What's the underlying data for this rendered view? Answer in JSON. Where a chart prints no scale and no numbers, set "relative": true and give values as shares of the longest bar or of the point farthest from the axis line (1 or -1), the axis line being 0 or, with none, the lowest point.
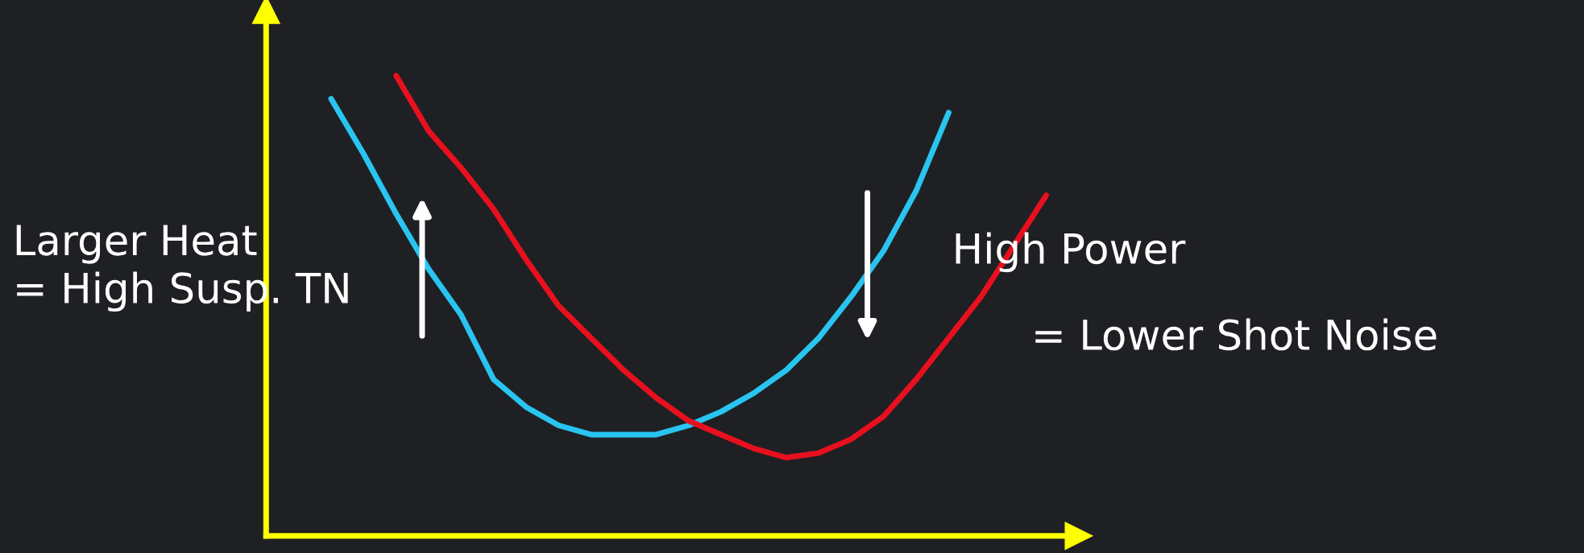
{
  "chart_data": {
    "type": "line",
    "relative": true,
    "marker": "none",
    "line_style": "solid",
    "categories": [
      null,
      null,
      null,
      null,
      null,
      null,
      null,
      null,
      null,
      null,
      null,
      null,
      null,
      null,
      null,
      null,
      null,
      null,
      null,
      null,
      null,
      null,
      null
    ],
    "series": [
      {
        "color": "#29c4f0",
        "values": [
          0.95,
          0.83,
          0.7,
          0.58,
          0.48,
          0.34,
          0.28,
          0.24,
          0.22,
          0.22,
          0.22,
          0.24,
          0.27,
          0.31,
          0.36,
          0.43,
          0.52,
          0.62,
          0.75,
          0.92,
          null,
          null,
          null
        ]
      },
      {
        "color": "#e8101e",
        "values": [
          null,
          null,
          1.0,
          0.88,
          0.8,
          0.71,
          0.6,
          0.5,
          0.43,
          0.36,
          0.3,
          0.25,
          0.22,
          0.19,
          0.17,
          0.18,
          0.21,
          0.26,
          0.34,
          0.43,
          0.52,
          0.63,
          0.74
        ]
      }
    ],
    "annotations": [
      "Larger Heat\n= High Susp. TN",
      "High Power",
      "= Lower Shot Noise"
    ]
  }
}
